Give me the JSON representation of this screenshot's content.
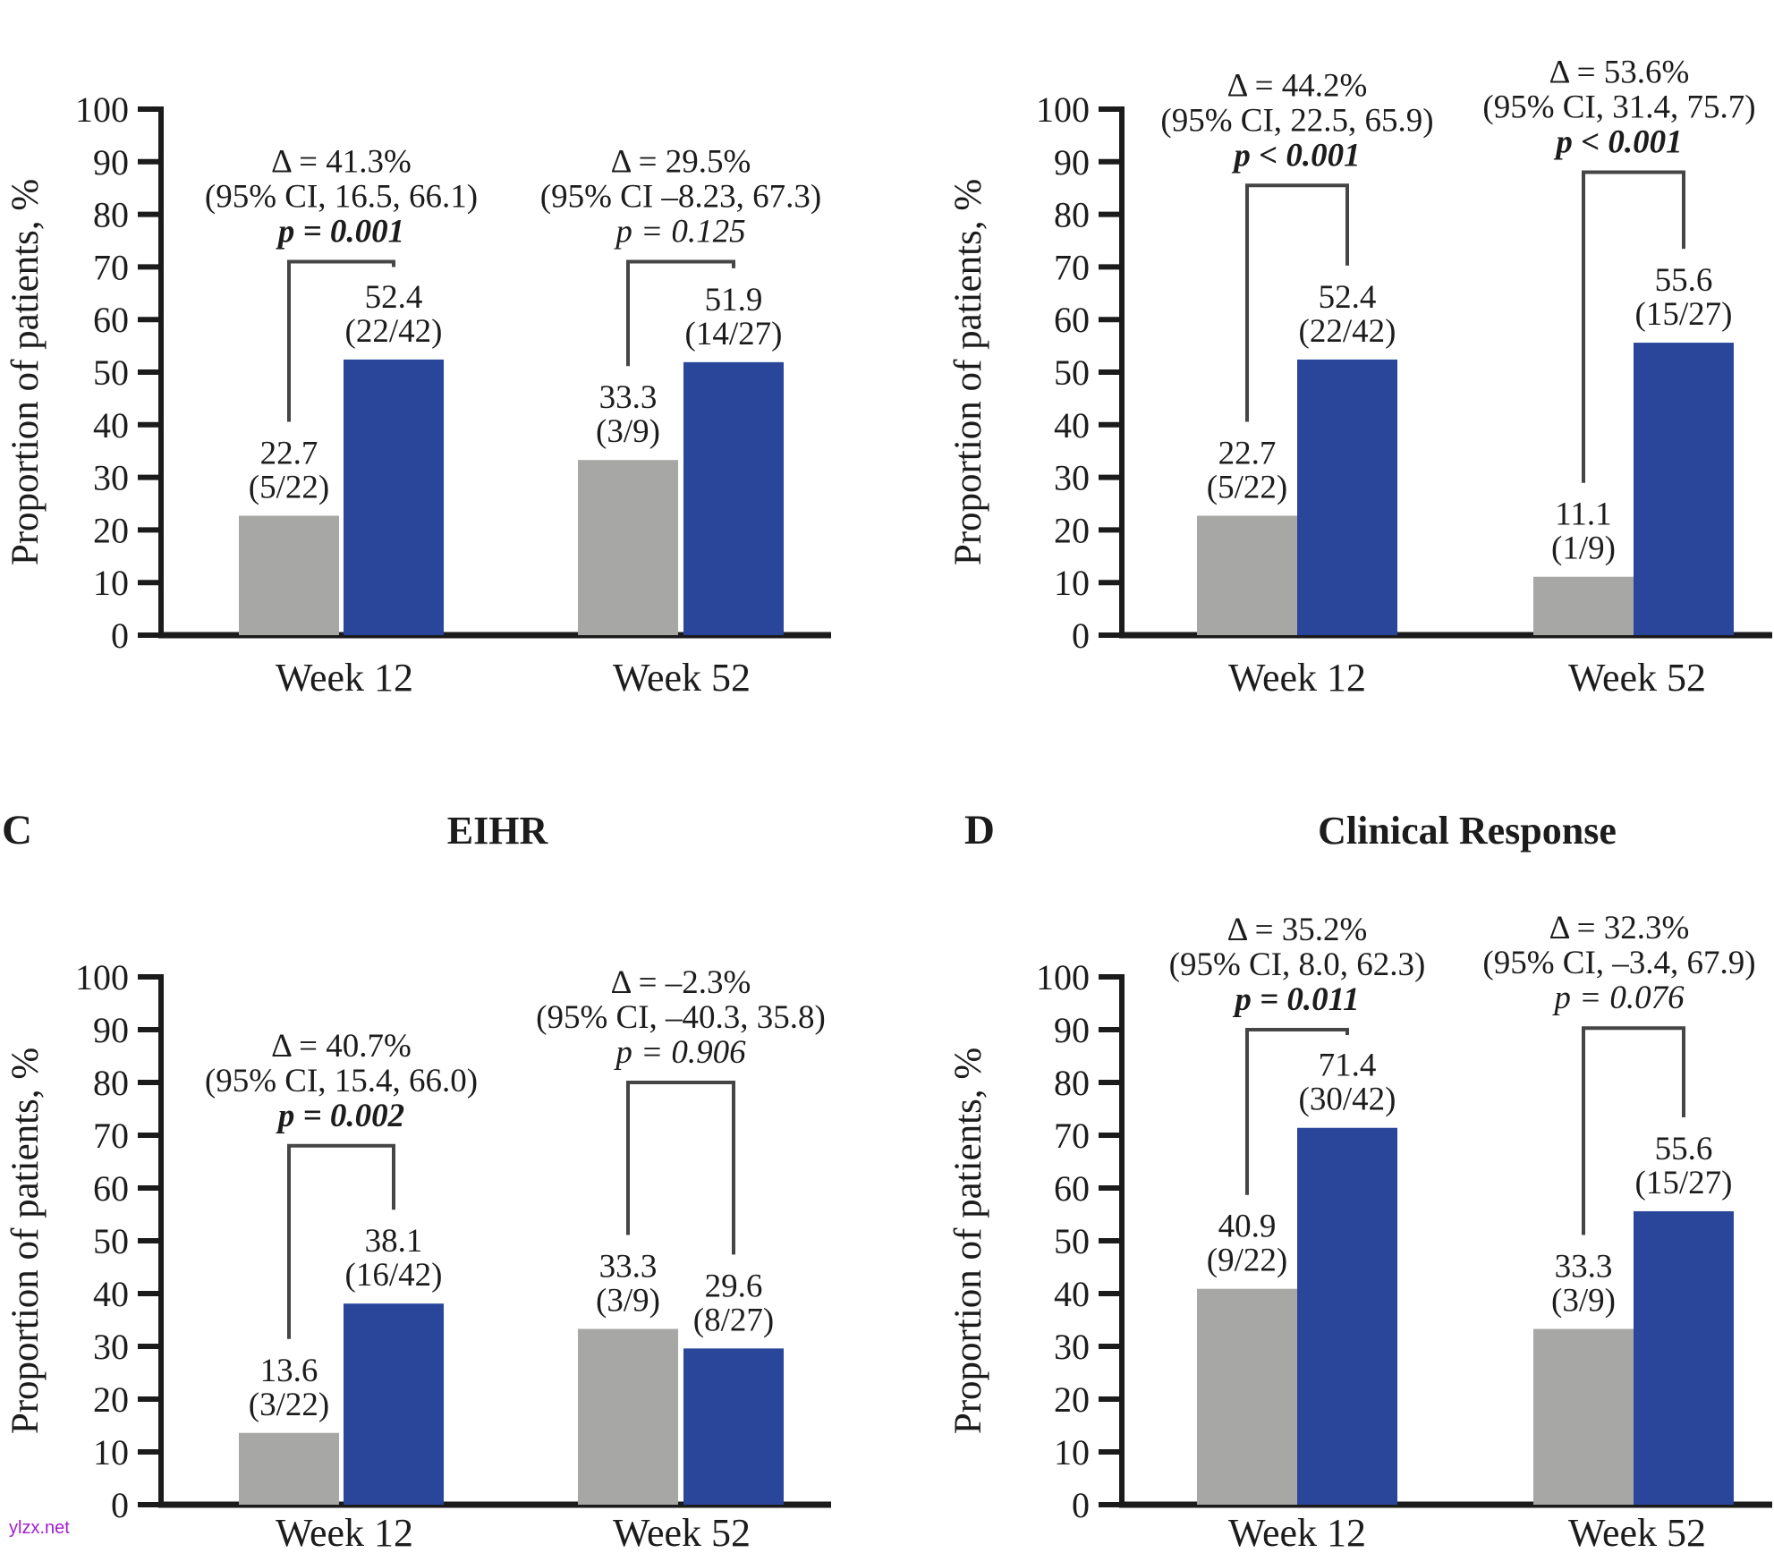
{
  "watermark": {
    "text": "ylzx.net",
    "color": "#a21ccf"
  },
  "colors": {
    "bar_gray": "#a7a7a5",
    "bar_blue": "#2a469b",
    "axis": "#1b1b1b",
    "bracket": "#454545",
    "text": "#1c1c1c"
  },
  "yticks": [
    0,
    10,
    20,
    30,
    40,
    50,
    60,
    70,
    80,
    90,
    100
  ],
  "chart_data": [
    {
      "id": "top-left",
      "type": "bar",
      "ylabel": "Proportion of patients, %",
      "ylim": [
        0,
        100
      ],
      "categories": [
        "Week 12",
        "Week 52"
      ],
      "series": [
        {
          "key": "gray",
          "color_key": "bar_gray",
          "values": [
            22.7,
            33.3
          ],
          "fractions": [
            "(5/22)",
            "(3/9)"
          ]
        },
        {
          "key": "blue",
          "color_key": "bar_blue",
          "values": [
            52.4,
            51.9
          ],
          "fractions": [
            "(22/42)",
            "(14/27)"
          ]
        }
      ],
      "comparisons": [
        {
          "delta": "Δ = 41.3%",
          "ci": "(95% CI, 16.5, 66.1)",
          "p": "p = 0.001",
          "p_bold": true,
          "bracket_top_pct": 71
        },
        {
          "delta": "Δ = 29.5%",
          "ci": "(95% CI –8.23, 67.3)",
          "p": "p = 0.125",
          "p_bold": false,
          "bracket_top_pct": 71
        }
      ]
    },
    {
      "id": "top-right",
      "type": "bar",
      "ylabel": "Proportion of patients, %",
      "ylim": [
        0,
        100
      ],
      "categories": [
        "Week 12",
        "Week 52"
      ],
      "series": [
        {
          "key": "gray",
          "color_key": "bar_gray",
          "values": [
            22.7,
            11.1
          ],
          "fractions": [
            "(5/22)",
            "(1/9)"
          ]
        },
        {
          "key": "blue",
          "color_key": "bar_blue",
          "values": [
            52.4,
            55.6
          ],
          "fractions": [
            "(22/42)",
            "(15/27)"
          ]
        }
      ],
      "comparisons": [
        {
          "delta": "Δ = 44.2%",
          "ci": "(95% CI, 22.5, 65.9)",
          "p": "p < 0.001",
          "p_bold": true,
          "bracket_top_pct": 85.5
        },
        {
          "delta": "Δ = 53.6%",
          "ci": "(95% CI, 31.4, 75.7)",
          "p": "p < 0.001",
          "p_bold": true,
          "bracket_top_pct": 88
        }
      ]
    },
    {
      "id": "bottom-left",
      "panel_letter": "C",
      "title": "EIHR",
      "type": "bar",
      "ylabel": "Proportion of patients, %",
      "ylim": [
        0,
        100
      ],
      "categories": [
        "Week 12",
        "Week 52"
      ],
      "series": [
        {
          "key": "gray",
          "color_key": "bar_gray",
          "values": [
            13.6,
            33.3
          ],
          "fractions": [
            "(3/22)",
            "(3/9)"
          ]
        },
        {
          "key": "blue",
          "color_key": "bar_blue",
          "values": [
            38.1,
            29.6
          ],
          "fractions": [
            "(16/42)",
            "(8/27)"
          ]
        }
      ],
      "comparisons": [
        {
          "delta": "Δ = 40.7%",
          "ci": "(95% CI, 15.4, 66.0)",
          "p": "p = 0.002",
          "p_bold": true,
          "bracket_top_pct": 68
        },
        {
          "delta": "Δ = –2.3%",
          "ci": "(95% CI, –40.3, 35.8)",
          "p": "p = 0.906",
          "p_bold": false,
          "bracket_top_pct": 80
        }
      ]
    },
    {
      "id": "bottom-right",
      "panel_letter": "D",
      "title": "Clinical Response",
      "type": "bar",
      "ylabel": "Proportion of patients, %",
      "ylim": [
        0,
        100
      ],
      "categories": [
        "Week 12",
        "Week 52"
      ],
      "series": [
        {
          "key": "gray",
          "color_key": "bar_gray",
          "values": [
            40.9,
            33.3
          ],
          "fractions": [
            "(9/22)",
            "(3/9)"
          ]
        },
        {
          "key": "blue",
          "color_key": "bar_blue",
          "values": [
            71.4,
            55.6
          ],
          "fractions": [
            "(30/42)",
            "(15/27)"
          ]
        }
      ],
      "comparisons": [
        {
          "delta": "Δ = 35.2%",
          "ci": "(95% CI, 8.0, 62.3)",
          "p": "p = 0.011",
          "p_bold": true,
          "bracket_top_pct": 90
        },
        {
          "delta": "Δ = 32.3%",
          "ci": "(95% CI, –3.4, 67.9)",
          "p": "p = 0.076",
          "p_bold": false,
          "bracket_top_pct": 90.3
        }
      ]
    }
  ]
}
